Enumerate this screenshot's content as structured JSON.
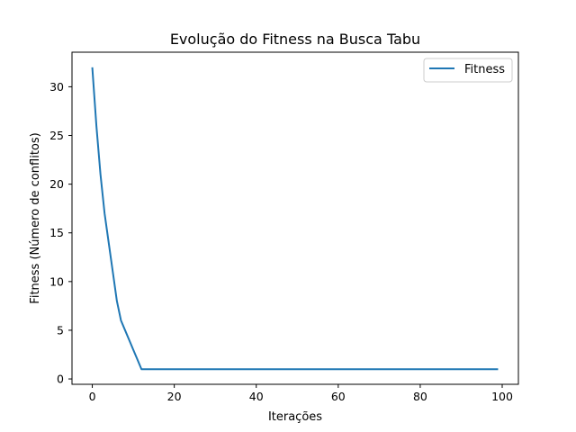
{
  "chart_data": {
    "type": "line",
    "title": "Evolução do Fitness na Busca Tabu",
    "xlabel": "Iterações",
    "ylabel": "Fitness (Número de conflitos)",
    "xlim": [
      -4.95,
      103.95
    ],
    "ylim": [
      -0.55,
      33.55
    ],
    "xticks": [
      0,
      20,
      40,
      60,
      80,
      100
    ],
    "yticks": [
      0,
      5,
      10,
      15,
      20,
      25,
      30
    ],
    "grid": false,
    "legend_position": "top-right",
    "series": [
      {
        "name": "Fitness",
        "color": "#1f77b4",
        "x": [
          0,
          1,
          2,
          3,
          4,
          5,
          6,
          7,
          8,
          9,
          10,
          11,
          12,
          13,
          14,
          15,
          16,
          17,
          18,
          19,
          20,
          21,
          22,
          23,
          24,
          25,
          26,
          27,
          28,
          29,
          30,
          31,
          32,
          33,
          34,
          35,
          36,
          37,
          38,
          39,
          40,
          41,
          42,
          43,
          44,
          45,
          46,
          47,
          48,
          49,
          50,
          51,
          52,
          53,
          54,
          55,
          56,
          57,
          58,
          59,
          60,
          61,
          62,
          63,
          64,
          65,
          66,
          67,
          68,
          69,
          70,
          71,
          72,
          73,
          74,
          75,
          76,
          77,
          78,
          79,
          80,
          81,
          82,
          83,
          84,
          85,
          86,
          87,
          88,
          89,
          90,
          91,
          92,
          93,
          94,
          95,
          96,
          97,
          98,
          99
        ],
        "y": [
          32,
          26,
          21,
          17,
          14,
          11,
          8,
          6,
          5,
          4,
          3,
          2,
          1,
          1,
          1,
          1,
          1,
          1,
          1,
          1,
          1,
          1,
          1,
          1,
          1,
          1,
          1,
          1,
          1,
          1,
          1,
          1,
          1,
          1,
          1,
          1,
          1,
          1,
          1,
          1,
          1,
          1,
          1,
          1,
          1,
          1,
          1,
          1,
          1,
          1,
          1,
          1,
          1,
          1,
          1,
          1,
          1,
          1,
          1,
          1,
          1,
          1,
          1,
          1,
          1,
          1,
          1,
          1,
          1,
          1,
          1,
          1,
          1,
          1,
          1,
          1,
          1,
          1,
          1,
          1,
          1,
          1,
          1,
          1,
          1,
          1,
          1,
          1,
          1,
          1,
          1,
          1,
          1,
          1,
          1,
          1,
          1,
          1,
          1,
          1
        ]
      }
    ]
  }
}
